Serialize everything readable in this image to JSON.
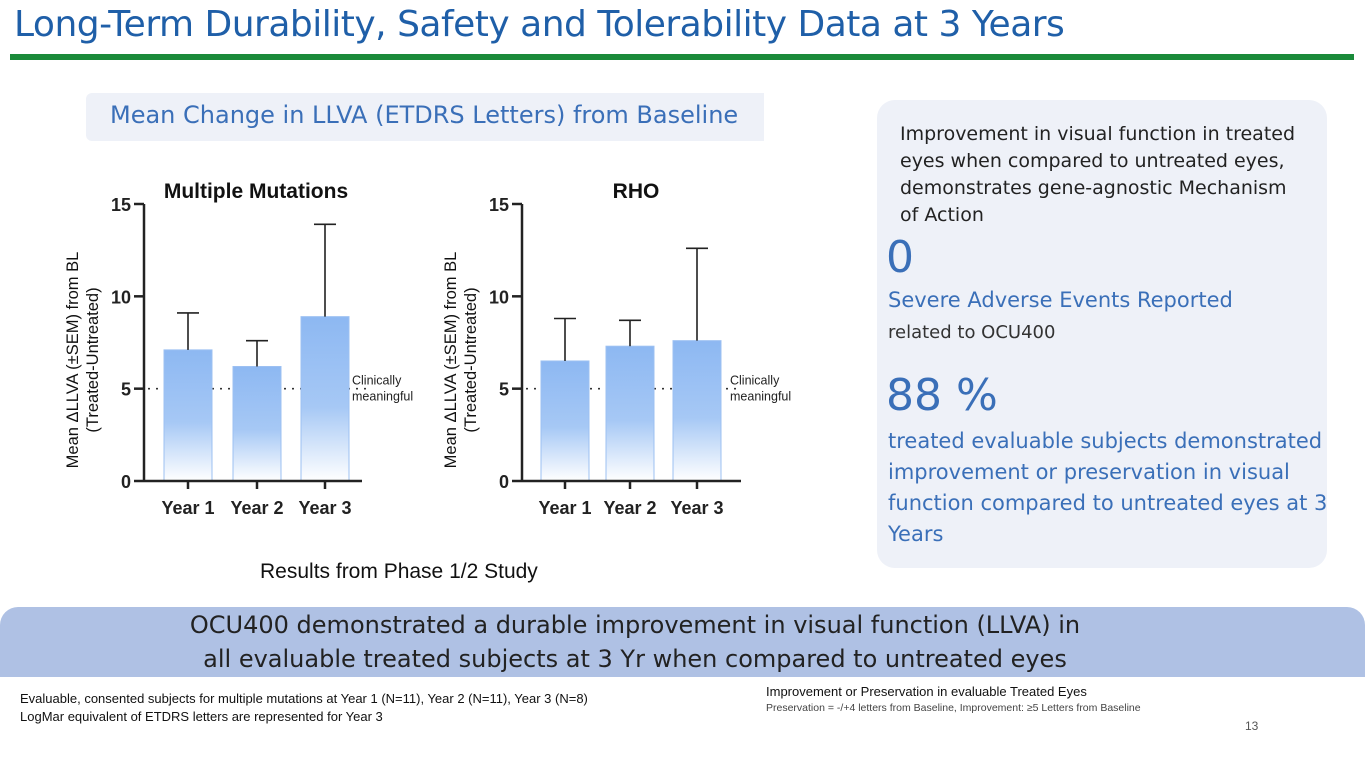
{
  "title": "Long-Term Durability, Safety and Tolerability Data at 3 Years",
  "chart_header": "Mean Change in LLVA (ETDRS Letters) from Baseline",
  "chart_data": [
    {
      "type": "bar",
      "title": "Multiple Mutations",
      "categories": [
        "Year 1",
        "Year 2",
        "Year 3"
      ],
      "values": [
        7.1,
        6.2,
        8.9
      ],
      "error_upper": [
        9.1,
        7.6,
        13.9
      ],
      "ylabel_line1": "Mean ΔLLVA (±SEM) from BL",
      "ylabel_line2": "(Treated-Untreated)",
      "ylim": [
        0,
        15
      ],
      "yticks": [
        "0",
        "5",
        "10",
        "15"
      ],
      "threshold": 5,
      "threshold_label": [
        "Clinically",
        "meaningful"
      ]
    },
    {
      "type": "bar",
      "title": "RHO",
      "categories": [
        "Year 1",
        "Year 2",
        "Year 3"
      ],
      "values": [
        6.5,
        7.3,
        7.6
      ],
      "error_upper": [
        8.8,
        8.7,
        12.6
      ],
      "ylabel_line1": "Mean ΔLLVA (±SEM)  from BL",
      "ylabel_line2": "(Treated-Untreated)",
      "ylim": [
        0,
        15
      ],
      "yticks": [
        "0",
        "5",
        "10",
        "15"
      ],
      "threshold": 5,
      "threshold_label": [
        "Clinically",
        "meaningful"
      ]
    }
  ],
  "results_note": "Results from Phase 1/2  Study",
  "panel": {
    "intro": "Improvement in visual function in  treated eyes when compared to untreated eyes, demonstrates gene-agnostic Mechanism of Action",
    "stat1_value": "0",
    "stat1_label": "Severe Adverse Events Reported",
    "stat1_sub": "related to OCU400",
    "stat2_value": "88 %",
    "stat2_label": "treated evaluable subjects demonstrated improvement or preservation in visual function compared to untreated eyes at 3  Years"
  },
  "banner": {
    "line1": "OCU400 demonstrated a durable improvement in visual function (LLVA) in",
    "line2": "all evaluable treated subjects at 3 Yr when compared to untreated eyes"
  },
  "footnotes": {
    "left1": "Evaluable, consented subjects for multiple mutations at Year 1 (N=11), Year 2 (N=11), Year 3 (N=8)",
    "left2": "LogMar equivalent of ETDRS letters are represented for Year 3",
    "right1": "Improvement or Preservation in evaluable Treated Eyes",
    "right2": "Preservation = -/+4 letters from Baseline, Improvement: ≥5 Letters from Baseline"
  },
  "page_number": "13",
  "colors": {
    "title": "#1f5fa8",
    "rule": "#1a8a3a",
    "bar": "#8db8f2",
    "accent": "#3a6fb8",
    "banner": "#afc1e4"
  }
}
